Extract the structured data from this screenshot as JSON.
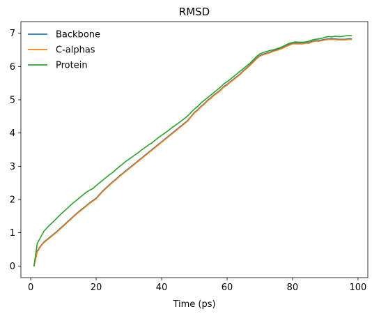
{
  "chart_data": {
    "type": "line",
    "title": "RMSD",
    "xlabel": "Time (ps)",
    "ylabel": "",
    "xlim": [
      -3,
      103
    ],
    "ylim": [
      -0.35,
      7.35
    ],
    "xticks": [
      0,
      20,
      40,
      60,
      80,
      100
    ],
    "yticks": [
      0,
      1,
      2,
      3,
      4,
      5,
      6,
      7
    ],
    "grid": false,
    "legend_placement": "top-left",
    "series": [
      {
        "name": "Backbone",
        "color": "#1f77b4",
        "x": [
          1,
          2,
          3,
          4,
          5,
          6,
          7,
          8,
          9,
          10,
          11,
          12,
          13,
          14,
          15,
          16,
          17,
          18,
          19,
          20,
          21,
          22,
          23,
          24,
          25,
          26,
          27,
          28,
          29,
          30,
          31,
          32,
          33,
          34,
          35,
          36,
          37,
          38,
          39,
          40,
          41,
          42,
          43,
          44,
          45,
          46,
          47,
          48,
          49,
          50,
          51,
          52,
          53,
          54,
          55,
          56,
          57,
          58,
          59,
          60,
          61,
          62,
          63,
          64,
          65,
          66,
          67,
          68,
          69,
          70,
          71,
          72,
          73,
          74,
          75,
          76,
          77,
          78,
          79,
          80,
          81,
          82,
          83,
          84,
          85,
          86,
          87,
          88,
          89,
          90,
          91,
          92,
          93,
          94,
          95,
          96,
          97,
          98
        ],
        "y": [
          0.0,
          0.45,
          0.6,
          0.72,
          0.8,
          0.88,
          0.96,
          1.04,
          1.13,
          1.22,
          1.31,
          1.4,
          1.49,
          1.58,
          1.66,
          1.74,
          1.82,
          1.9,
          1.97,
          2.04,
          2.15,
          2.26,
          2.35,
          2.44,
          2.53,
          2.61,
          2.7,
          2.78,
          2.86,
          2.94,
          3.02,
          3.1,
          3.18,
          3.26,
          3.34,
          3.42,
          3.5,
          3.58,
          3.66,
          3.74,
          3.82,
          3.9,
          3.98,
          4.06,
          4.14,
          4.22,
          4.3,
          4.38,
          4.5,
          4.62,
          4.7,
          4.8,
          4.88,
          4.98,
          5.06,
          5.15,
          5.22,
          5.3,
          5.4,
          5.46,
          5.55,
          5.62,
          5.7,
          5.78,
          5.88,
          5.96,
          6.05,
          6.15,
          6.25,
          6.33,
          6.37,
          6.4,
          6.43,
          6.47,
          6.5,
          6.53,
          6.57,
          6.62,
          6.66,
          6.7,
          6.7,
          6.7,
          6.7,
          6.72,
          6.72,
          6.76,
          6.78,
          6.78,
          6.8,
          6.82,
          6.83,
          6.83,
          6.83,
          6.82,
          6.82,
          6.82,
          6.83,
          6.83
        ]
      },
      {
        "name": "C-alphas",
        "color": "#ff7f0e",
        "x": [
          1,
          2,
          3,
          4,
          5,
          6,
          7,
          8,
          9,
          10,
          11,
          12,
          13,
          14,
          15,
          16,
          17,
          18,
          19,
          20,
          21,
          22,
          23,
          24,
          25,
          26,
          27,
          28,
          29,
          30,
          31,
          32,
          33,
          34,
          35,
          36,
          37,
          38,
          39,
          40,
          41,
          42,
          43,
          44,
          45,
          46,
          47,
          48,
          49,
          50,
          51,
          52,
          53,
          54,
          55,
          56,
          57,
          58,
          59,
          60,
          61,
          62,
          63,
          64,
          65,
          66,
          67,
          68,
          69,
          70,
          71,
          72,
          73,
          74,
          75,
          76,
          77,
          78,
          79,
          80,
          81,
          82,
          83,
          84,
          85,
          86,
          87,
          88,
          89,
          90,
          91,
          92,
          93,
          94,
          95,
          96,
          97,
          98
        ],
        "y": [
          0.0,
          0.42,
          0.58,
          0.7,
          0.78,
          0.86,
          0.94,
          1.02,
          1.11,
          1.2,
          1.29,
          1.38,
          1.47,
          1.56,
          1.64,
          1.72,
          1.8,
          1.88,
          1.95,
          2.02,
          2.13,
          2.24,
          2.33,
          2.42,
          2.51,
          2.59,
          2.68,
          2.76,
          2.84,
          2.92,
          3.0,
          3.08,
          3.16,
          3.24,
          3.32,
          3.4,
          3.48,
          3.56,
          3.64,
          3.72,
          3.8,
          3.88,
          3.96,
          4.04,
          4.12,
          4.2,
          4.28,
          4.36,
          4.48,
          4.6,
          4.68,
          4.78,
          4.86,
          4.96,
          5.04,
          5.13,
          5.2,
          5.28,
          5.38,
          5.44,
          5.53,
          5.6,
          5.68,
          5.76,
          5.86,
          5.94,
          6.03,
          6.13,
          6.23,
          6.31,
          6.35,
          6.38,
          6.41,
          6.45,
          6.48,
          6.51,
          6.55,
          6.6,
          6.64,
          6.68,
          6.68,
          6.68,
          6.68,
          6.7,
          6.7,
          6.74,
          6.76,
          6.76,
          6.78,
          6.8,
          6.81,
          6.81,
          6.81,
          6.8,
          6.8,
          6.8,
          6.81,
          6.81
        ]
      },
      {
        "name": "Protein",
        "color": "#2ca02c",
        "x": [
          1,
          2,
          3,
          4,
          5,
          6,
          7,
          8,
          9,
          10,
          11,
          12,
          13,
          14,
          15,
          16,
          17,
          18,
          19,
          20,
          21,
          22,
          23,
          24,
          25,
          26,
          27,
          28,
          29,
          30,
          31,
          32,
          33,
          34,
          35,
          36,
          37,
          38,
          39,
          40,
          41,
          42,
          43,
          44,
          45,
          46,
          47,
          48,
          49,
          50,
          51,
          52,
          53,
          54,
          55,
          56,
          57,
          58,
          59,
          60,
          61,
          62,
          63,
          64,
          65,
          66,
          67,
          68,
          69,
          70,
          71,
          72,
          73,
          74,
          75,
          76,
          77,
          78,
          79,
          80,
          81,
          82,
          83,
          84,
          85,
          86,
          87,
          88,
          89,
          90,
          91,
          92,
          93,
          94,
          95,
          96,
          97,
          98
        ],
        "y": [
          0.0,
          0.68,
          0.86,
          1.04,
          1.15,
          1.25,
          1.34,
          1.44,
          1.54,
          1.63,
          1.72,
          1.81,
          1.9,
          1.98,
          2.06,
          2.14,
          2.22,
          2.28,
          2.33,
          2.42,
          2.5,
          2.58,
          2.66,
          2.74,
          2.81,
          2.9,
          2.98,
          3.06,
          3.14,
          3.21,
          3.28,
          3.35,
          3.42,
          3.5,
          3.57,
          3.64,
          3.7,
          3.78,
          3.86,
          3.93,
          4.0,
          4.07,
          4.15,
          4.22,
          4.29,
          4.36,
          4.44,
          4.52,
          4.62,
          4.72,
          4.8,
          4.9,
          4.98,
          5.06,
          5.14,
          5.22,
          5.3,
          5.38,
          5.48,
          5.54,
          5.62,
          5.7,
          5.78,
          5.86,
          5.94,
          6.02,
          6.1,
          6.2,
          6.3,
          6.38,
          6.42,
          6.45,
          6.48,
          6.5,
          6.53,
          6.56,
          6.6,
          6.65,
          6.7,
          6.72,
          6.74,
          6.73,
          6.73,
          6.74,
          6.76,
          6.8,
          6.82,
          6.83,
          6.85,
          6.88,
          6.9,
          6.89,
          6.91,
          6.9,
          6.9,
          6.92,
          6.93,
          6.93
        ]
      }
    ]
  }
}
